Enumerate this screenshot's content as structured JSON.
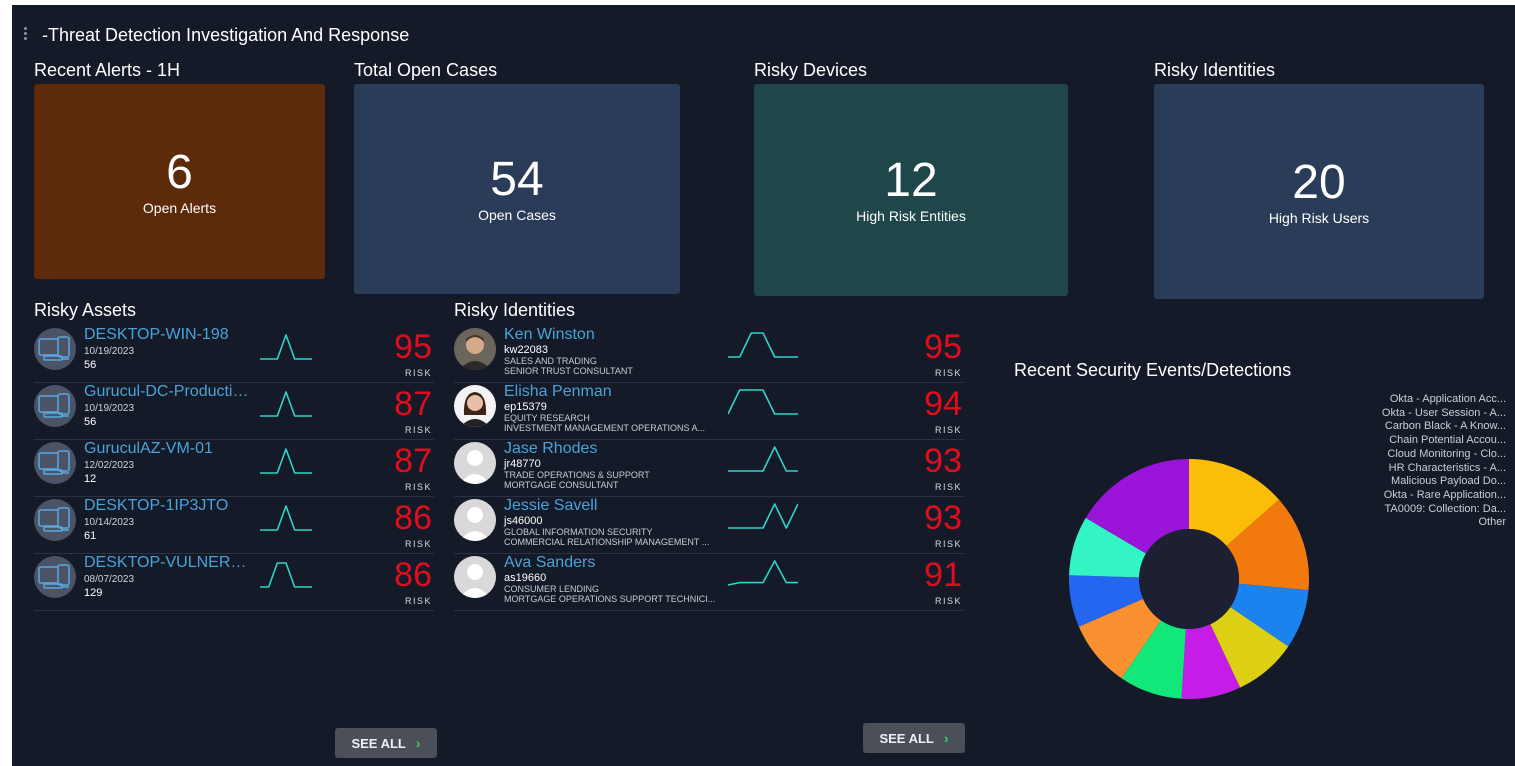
{
  "dashboard": {
    "title": "-Threat Detection Investigation And Response"
  },
  "tiles": [
    {
      "section": "Recent Alerts - 1H",
      "value": "6",
      "label": "Open Alerts",
      "color": "#5d2a0a"
    },
    {
      "section": "Total Open Cases",
      "value": "54",
      "label": "Open Cases",
      "color": "#2a3c57"
    },
    {
      "section": "Risky Devices",
      "value": "12",
      "label": "High Risk Entities",
      "color": "#1f4649"
    },
    {
      "section": "Risky Identities",
      "value": "20",
      "label": "High Risk Users",
      "color": "#2a3c57"
    }
  ],
  "risky_assets": {
    "title": "Risky Assets",
    "risk_label": "RISK",
    "see_all": "SEE ALL",
    "items": [
      {
        "name": "DESKTOP-WIN-198",
        "date": "10/19/2023",
        "count": "56",
        "score": "95",
        "trend": [
          0,
          0,
          0,
          1,
          0,
          0,
          0
        ]
      },
      {
        "name": "Gurucul-DC-Productio...",
        "date": "10/19/2023",
        "count": "56",
        "score": "87",
        "trend": [
          0,
          0,
          0,
          1,
          0,
          0,
          0
        ]
      },
      {
        "name": "GuruculAZ-VM-01",
        "date": "12/02/2023",
        "count": "12",
        "score": "87",
        "trend": [
          0,
          0,
          0,
          1,
          0,
          0,
          0
        ]
      },
      {
        "name": "DESKTOP-1IP3JTO",
        "date": "10/14/2023",
        "count": "61",
        "score": "86",
        "trend": [
          0,
          0,
          0,
          1,
          0,
          0,
          0
        ]
      },
      {
        "name": "DESKTOP-VULNERAB...",
        "date": "08/07/2023",
        "count": "129",
        "score": "86",
        "trend": [
          0,
          0,
          1,
          1,
          0,
          0,
          0
        ]
      }
    ]
  },
  "risky_identities": {
    "title": "Risky Identities",
    "risk_label": "RISK",
    "see_all": "SEE ALL",
    "items": [
      {
        "name": "Ken Winston",
        "id": "kw22083",
        "dept": "SALES AND TRADING",
        "role": "SENIOR TRUST CONSULTANT",
        "score": "95",
        "avatar": "photo-male",
        "trend": [
          0,
          0,
          1,
          1,
          0,
          0,
          0
        ]
      },
      {
        "name": "Elisha Penman",
        "id": "ep15379",
        "dept": "EQUITY RESEARCH",
        "role": "INVESTMENT MANAGEMENT OPERATIONS A...",
        "score": "94",
        "avatar": "photo-female",
        "trend": [
          0,
          1,
          1,
          1,
          0,
          0,
          0
        ]
      },
      {
        "name": "Jase Rhodes",
        "id": "jr48770",
        "dept": "TRADE OPERATIONS & SUPPORT",
        "role": "MORTGAGE CONSULTANT",
        "score": "93",
        "avatar": "placeholder",
        "trend": [
          0,
          0,
          0,
          0,
          1,
          0,
          0
        ]
      },
      {
        "name": "Jessie Savell",
        "id": "js46000",
        "dept": "GLOBAL INFORMATION SECURITY",
        "role": "COMMERCIAL RELATIONSHIP MANAGEMENT ...",
        "score": "93",
        "avatar": "placeholder",
        "trend": [
          0,
          0,
          0,
          0,
          1,
          0,
          1
        ]
      },
      {
        "name": "Ava Sanders",
        "id": "as19660",
        "dept": "CONSUMER LENDING",
        "role": "MORTGAGE OPERATIONS SUPPORT TECHNICI...",
        "score": "91",
        "avatar": "placeholder",
        "trend": [
          0,
          0.1,
          0.1,
          0.1,
          1,
          0.1,
          0.1
        ]
      }
    ]
  },
  "chart_data": {
    "type": "pie",
    "title": "Recent Security Events/Detections",
    "donut": true,
    "labels": [
      "Okta - Application Acc...",
      "Okta - User Session - A...",
      "Carbon Black - A Know...",
      "Chain Potential Accou...",
      "Cloud Monitoring - Clo...",
      "HR Characteristics - A...",
      "Malicious Payload Do...",
      "Okta - Rare Application...",
      "TA0009: Collection: Da...",
      "Other"
    ],
    "values": [
      13.5,
      13,
      8,
      8.5,
      8,
      8.5,
      9,
      7,
      8,
      16.5
    ],
    "colors": [
      "#fbbd08",
      "#f27a0c",
      "#1a83f0",
      "#ddd014",
      "#c51ce8",
      "#12e87a",
      "#fb9030",
      "#2566f0",
      "#33f5c4",
      "#9a14d9"
    ]
  }
}
